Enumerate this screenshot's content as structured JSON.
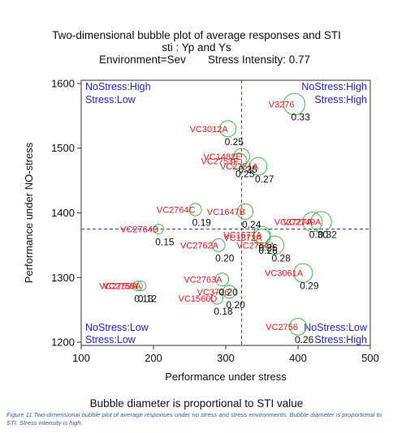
{
  "chart_data": {
    "type": "scatter",
    "title": "Two-dimensional bubble plot of average responses and STI",
    "subtitle": "sti : Yp and Ys",
    "environment": "Environment=Sev",
    "stress_intensity": "Stress Intensity: 0.77",
    "xlabel": "Performance under stress",
    "ylabel": "Performance under NO-stress",
    "xlim": [
      100,
      500
    ],
    "ylim": [
      1195,
      1605
    ],
    "xticks": [
      100,
      200,
      300,
      400,
      500
    ],
    "yticks": [
      1200,
      1300,
      1400,
      1500,
      1600
    ],
    "ref_x": 322,
    "ref_y": 1375,
    "quadrants": {
      "top_left": [
        "NoStress:High",
        "Stress:Low"
      ],
      "top_right": [
        "NoStress:High",
        "Stress:High"
      ],
      "bottom_left": [
        "NoStress:Low",
        "Stress:Low"
      ],
      "bottom_right": [
        "NoStress:Low",
        "Stress:High"
      ]
    },
    "point_color": "#e8161c",
    "value_color": "#111111",
    "bubble_color": "#4caf50",
    "ref_color": "#3a3ad6",
    "quadrant_color": "#2323c8",
    "points": [
      {
        "label": "V3276",
        "x": 395,
        "y": 1568,
        "sti": "0.33"
      },
      {
        "label": "VC3012A",
        "x": 303,
        "y": 1530,
        "sti": "0.25"
      },
      {
        "label": "VC1482E",
        "x": 322,
        "y": 1487,
        "sti": "0.25"
      },
      {
        "label": "VC2753F",
        "x": 318,
        "y": 1480,
        "sti": "0.25"
      },
      {
        "label": "VC2751A",
        "x": 345,
        "y": 1472,
        "sti": "0.27"
      },
      {
        "label": "VC2764C",
        "x": 258,
        "y": 1405,
        "sti": "0.19"
      },
      {
        "label": "VC1647B",
        "x": 327,
        "y": 1402,
        "sti": "0.24"
      },
      {
        "label": "VC2764B",
        "x": 207,
        "y": 1375,
        "sti": "0.15"
      },
      {
        "label": "VC2727A",
        "x": 420,
        "y": 1386,
        "sti": "0.30"
      },
      {
        "label": "VC2749A",
        "x": 432,
        "y": 1386,
        "sti": "0.32"
      },
      {
        "label": "VC2762A",
        "x": 290,
        "y": 1350,
        "sti": "0.20"
      },
      {
        "label": "VC1577A",
        "x": 350,
        "y": 1366,
        "sti": "0.26"
      },
      {
        "label": "VC1872A",
        "x": 350,
        "y": 1362,
        "sti": "0.26"
      },
      {
        "label": "VC2754A",
        "x": 368,
        "y": 1350,
        "sti": "0.28"
      },
      {
        "label": "VC3061A",
        "x": 407,
        "y": 1307,
        "sti": "0.29"
      },
      {
        "label": "VC2763A",
        "x": 295,
        "y": 1297,
        "sti": "0.20"
      },
      {
        "label": "VC3726",
        "x": 305,
        "y": 1278,
        "sti": "0.20"
      },
      {
        "label": "VC1560D",
        "x": 288,
        "y": 1268,
        "sti": "0.18"
      },
      {
        "label": "VC2755A",
        "x": 183,
        "y": 1287,
        "sti": "0.12"
      },
      {
        "label": "VC2759A",
        "x": 178,
        "y": 1287,
        "sti": "0.13"
      },
      {
        "label": "VC2756",
        "x": 400,
        "y": 1224,
        "sti": "0.26"
      }
    ]
  },
  "note": "Bubble diameter is proportional to STI value",
  "caption": "Figure 11 Two-dimensional bubble plot of average responses under no stress and stress environments. Bubble diameter is proportional to STI. Stress intensity is high."
}
